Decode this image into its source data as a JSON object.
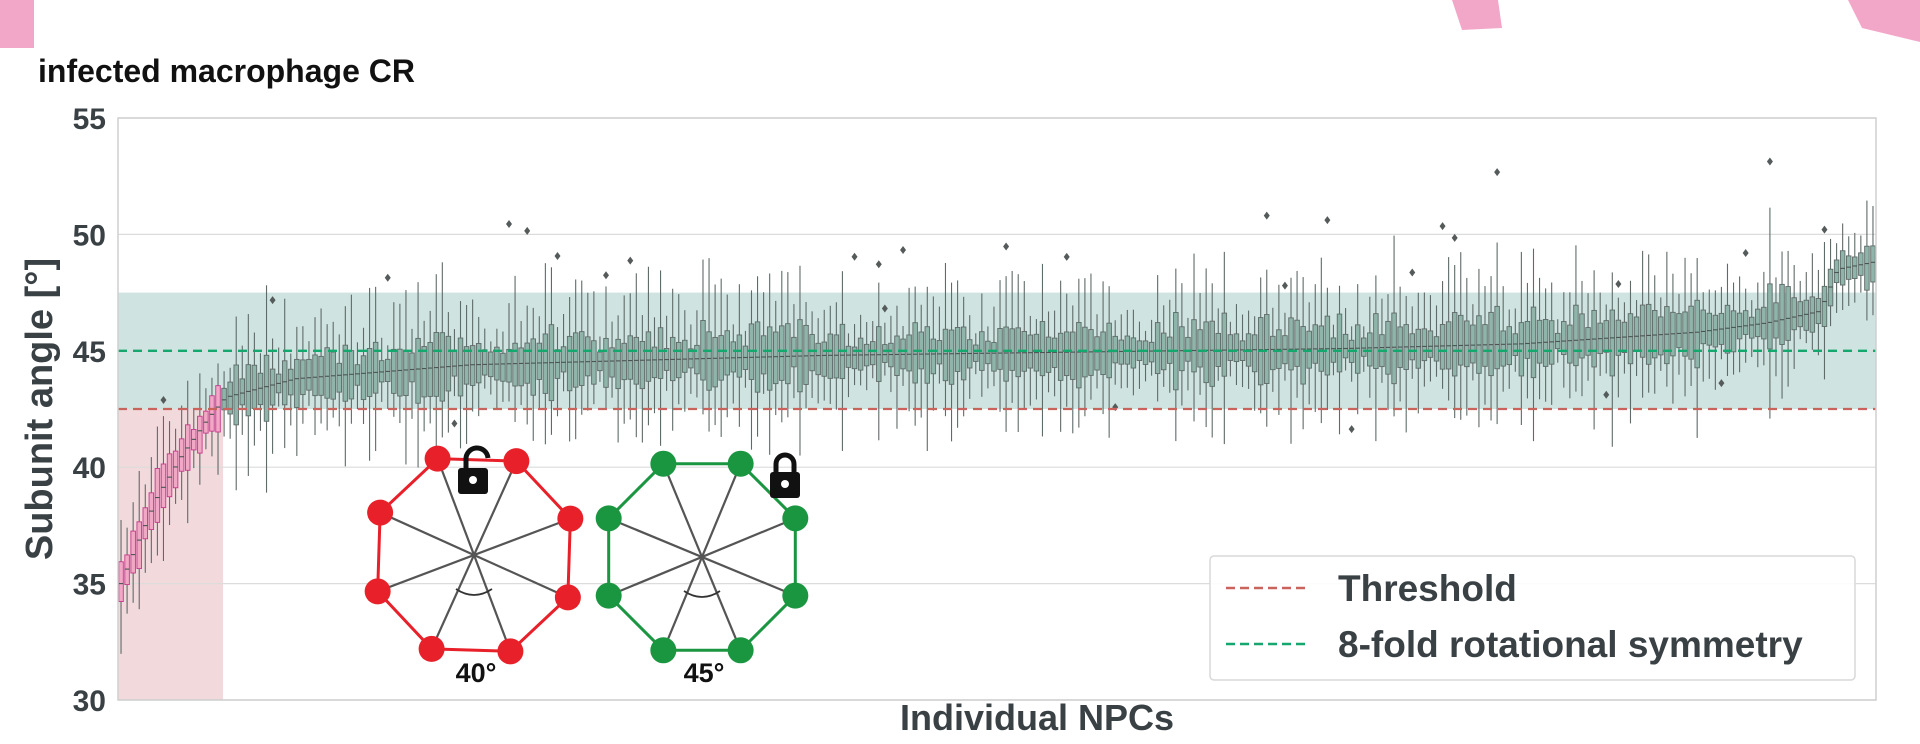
{
  "chart_data": {
    "type": "box",
    "title": "infected macrophage CR",
    "xlabel": "Individual NPCs",
    "ylabel": "Subunit angle [°]",
    "ylim": [
      30,
      55
    ],
    "yticks": [
      30,
      35,
      40,
      45,
      50,
      55
    ],
    "grid": true,
    "threshold": 42.5,
    "symmetry_angle": 45,
    "symmetric_band": [
      42.5,
      47.5
    ],
    "n_boxes": 290,
    "n_below_threshold": 17,
    "median_profile": {
      "x_fraction": [
        0,
        0.02,
        0.035,
        0.05,
        0.06,
        0.1,
        0.2,
        0.4,
        0.6,
        0.7,
        0.8,
        0.9,
        0.94,
        0.97,
        0.98,
        1.0
      ],
      "median": [
        35.0,
        38.6,
        40.5,
        42.1,
        43.0,
        43.8,
        44.4,
        44.8,
        45.0,
        45.1,
        45.3,
        45.8,
        46.2,
        46.7,
        48.5,
        48.8
      ]
    },
    "legend": {
      "position": "lower-right",
      "entries": [
        {
          "label": "Threshold",
          "color": "#c9645c",
          "style": "dashed"
        },
        {
          "label": "8-fold rotational symmetry",
          "color": "#15a86e",
          "style": "dashed"
        }
      ]
    },
    "insets": [
      {
        "label": "40°",
        "color": "#e8202a",
        "lock": "open"
      },
      {
        "label": "45°",
        "color": "#1a9641",
        "lock": "closed"
      }
    ],
    "colors": {
      "box_fill": "#8fb4a9",
      "box_edge": "#5f6b68",
      "box_below_fill": "#f0a8c4",
      "box_below_edge": "#c43a8a",
      "band": "#cfe3e1",
      "below_region": "#f2d9dc",
      "grid": "#dcdcdc"
    }
  }
}
